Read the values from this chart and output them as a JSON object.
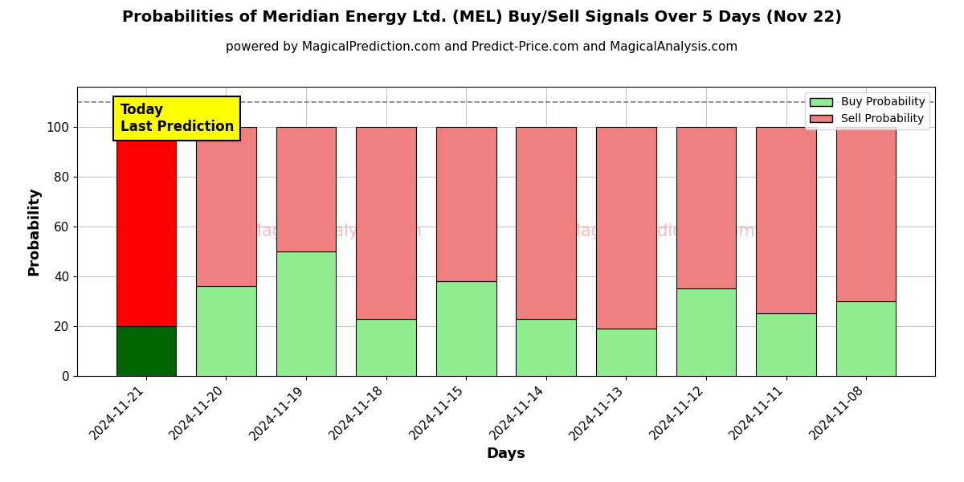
{
  "title": "Probabilities of Meridian Energy Ltd. (MEL) Buy/Sell Signals Over 5 Days (Nov 22)",
  "subtitle": "powered by MagicalPrediction.com and Predict-Price.com and MagicalAnalysis.com",
  "xlabel": "Days",
  "ylabel": "Probability",
  "categories": [
    "2024-11-21",
    "2024-11-20",
    "2024-11-19",
    "2024-11-18",
    "2024-11-15",
    "2024-11-14",
    "2024-11-13",
    "2024-11-12",
    "2024-11-11",
    "2024-11-08"
  ],
  "buy_values": [
    20,
    36,
    50,
    23,
    38,
    23,
    19,
    35,
    25,
    30
  ],
  "sell_values": [
    80,
    64,
    50,
    77,
    62,
    77,
    81,
    65,
    75,
    70
  ],
  "today_index": 0,
  "today_buy_color": "#006400",
  "today_sell_color": "#ff0000",
  "normal_buy_color": "#90EE90",
  "normal_sell_color": "#F08080",
  "dashed_line_y": 110,
  "ylim": [
    0,
    116
  ],
  "yticks": [
    0,
    20,
    40,
    60,
    80,
    100
  ],
  "legend_buy_label": "Buy Probability",
  "legend_sell_label": "Sell Probability",
  "today_label": "Today\nLast Prediction",
  "title_fontsize": 14,
  "subtitle_fontsize": 11,
  "axis_label_fontsize": 13,
  "tick_fontsize": 11,
  "bar_width": 0.75
}
